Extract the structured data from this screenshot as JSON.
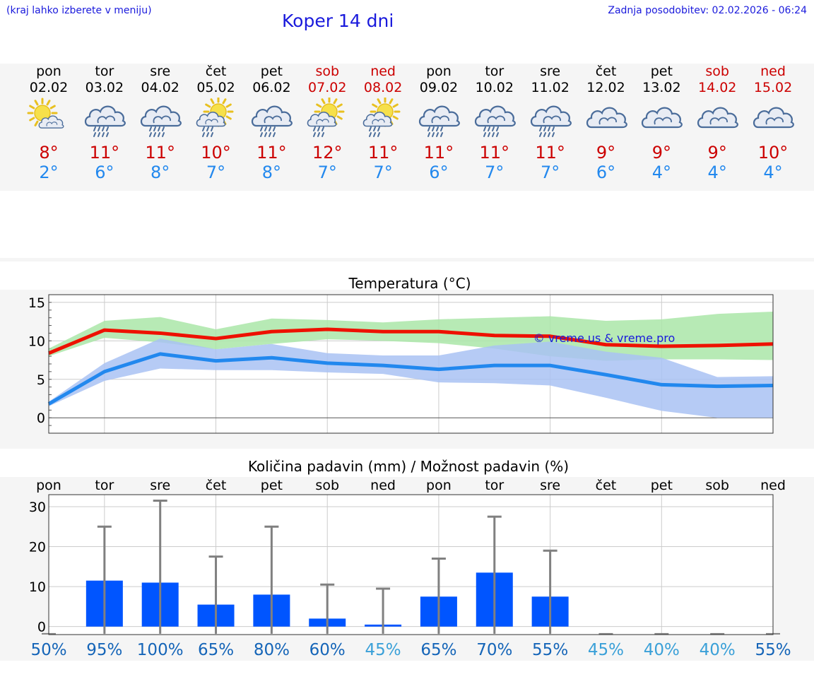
{
  "header": {
    "menu_hint": "(kraj lahko izberete v meniju)",
    "title": "Koper 14 dni",
    "last_update": "Zadnja posodobitev: 02.02.2026 - 06:24"
  },
  "days": [
    {
      "name": "pon",
      "date": "02.02",
      "weekend": false,
      "icon": "sun-cloud-icon",
      "tmax": "8°",
      "tmin": "2°"
    },
    {
      "name": "tor",
      "date": "03.02",
      "weekend": false,
      "icon": "cloud-rain-icon",
      "tmax": "11°",
      "tmin": "6°"
    },
    {
      "name": "sre",
      "date": "04.02",
      "weekend": false,
      "icon": "cloud-rain-icon",
      "tmax": "11°",
      "tmin": "8°"
    },
    {
      "name": "čet",
      "date": "05.02",
      "weekend": false,
      "icon": "sun-cloud-rain-icon",
      "tmax": "10°",
      "tmin": "7°"
    },
    {
      "name": "pet",
      "date": "06.02",
      "weekend": false,
      "icon": "cloud-rain-icon",
      "tmax": "11°",
      "tmin": "8°"
    },
    {
      "name": "sob",
      "date": "07.02",
      "weekend": true,
      "icon": "sun-cloud-rain-icon",
      "tmax": "12°",
      "tmin": "7°"
    },
    {
      "name": "ned",
      "date": "08.02",
      "weekend": true,
      "icon": "sun-cloud-rain-icon",
      "tmax": "11°",
      "tmin": "7°"
    },
    {
      "name": "pon",
      "date": "09.02",
      "weekend": false,
      "icon": "cloud-rain-icon",
      "tmax": "11°",
      "tmin": "6°"
    },
    {
      "name": "tor",
      "date": "10.02",
      "weekend": false,
      "icon": "cloud-rain-icon",
      "tmax": "11°",
      "tmin": "7°"
    },
    {
      "name": "sre",
      "date": "11.02",
      "weekend": false,
      "icon": "cloud-rain-icon",
      "tmax": "11°",
      "tmin": "7°"
    },
    {
      "name": "čet",
      "date": "12.02",
      "weekend": false,
      "icon": "cloud-icon",
      "tmax": "9°",
      "tmin": "6°"
    },
    {
      "name": "pet",
      "date": "13.02",
      "weekend": false,
      "icon": "cloud-icon",
      "tmax": "9°",
      "tmin": "4°"
    },
    {
      "name": "sob",
      "date": "14.02",
      "weekend": true,
      "icon": "cloud-icon",
      "tmax": "9°",
      "tmin": "4°"
    },
    {
      "name": "ned",
      "date": "15.02",
      "weekend": true,
      "icon": "cloud-icon",
      "tmax": "10°",
      "tmin": "4°"
    }
  ],
  "colors": {
    "title_blue": "#1a1adc",
    "max_red": "#ee1100",
    "min_blue": "#2288ee",
    "max_band": "#aae6a8",
    "min_band": "#a9c2f3",
    "overlap_band": "#7fc9a8",
    "bar_blue": "#0055ff",
    "whisker": "#808080"
  },
  "chart_data": [
    {
      "type": "line",
      "title": "Temperatura (°C)",
      "watermark": "© vreme.us & vreme.pro",
      "x": [
        0,
        1,
        2,
        3,
        4,
        5,
        6,
        7,
        8,
        9,
        10,
        11,
        12,
        13
      ],
      "ylim": [
        -2,
        16
      ],
      "yticks": [
        0,
        5,
        10,
        15
      ],
      "grid": true,
      "series": [
        {
          "name": "max",
          "values": [
            8.4,
            11.4,
            11.0,
            10.3,
            11.2,
            11.5,
            11.2,
            11.2,
            10.7,
            10.6,
            9.5,
            9.3,
            9.4,
            9.6
          ],
          "band_low": [
            8.0,
            10.4,
            9.8,
            8.9,
            9.6,
            10.2,
            10.0,
            9.7,
            9.0,
            8.0,
            7.4,
            7.6,
            7.6,
            7.5
          ],
          "band_high": [
            9.0,
            12.6,
            13.1,
            11.5,
            12.9,
            12.7,
            12.4,
            12.8,
            13.0,
            13.2,
            12.6,
            12.8,
            13.5,
            13.8
          ]
        },
        {
          "name": "min",
          "values": [
            1.8,
            6.0,
            8.3,
            7.4,
            7.8,
            7.1,
            6.8,
            6.3,
            6.8,
            6.8,
            5.6,
            4.3,
            4.1,
            4.2
          ],
          "band_low": [
            1.5,
            4.8,
            6.4,
            6.2,
            6.2,
            5.9,
            5.7,
            4.6,
            4.5,
            4.2,
            2.6,
            0.9,
            0.0,
            0.0
          ],
          "band_high": [
            2.1,
            7.1,
            10.3,
            8.9,
            9.6,
            8.4,
            8.1,
            8.1,
            9.4,
            9.9,
            8.6,
            7.8,
            5.3,
            5.4
          ]
        }
      ]
    },
    {
      "type": "bar",
      "title": "Količina padavin (mm) / Možnost padavin (%)",
      "categories": [
        "pon",
        "tor",
        "sre",
        "čet",
        "pet",
        "sob",
        "ned",
        "pon",
        "tor",
        "sre",
        "čet",
        "pet",
        "sob",
        "ned"
      ],
      "values": [
        0,
        11.5,
        11,
        5.5,
        8,
        2,
        0.5,
        7.5,
        13.5,
        7.5,
        0,
        0,
        0,
        0
      ],
      "whisker_high": [
        0,
        25,
        31.5,
        17.5,
        25,
        10.5,
        9.5,
        17,
        27.5,
        19,
        0,
        0,
        0,
        0
      ],
      "chance": [
        "50%",
        "95%",
        "100%",
        "65%",
        "80%",
        "60%",
        "45%",
        "65%",
        "70%",
        "55%",
        "45%",
        "40%",
        "40%",
        "55%"
      ],
      "chance_highlight": [
        false,
        false,
        false,
        false,
        false,
        false,
        true,
        false,
        false,
        false,
        true,
        true,
        true,
        false
      ],
      "ylim": [
        -2,
        33
      ],
      "yticks": [
        0,
        10,
        20,
        30
      ],
      "grid": true
    }
  ]
}
